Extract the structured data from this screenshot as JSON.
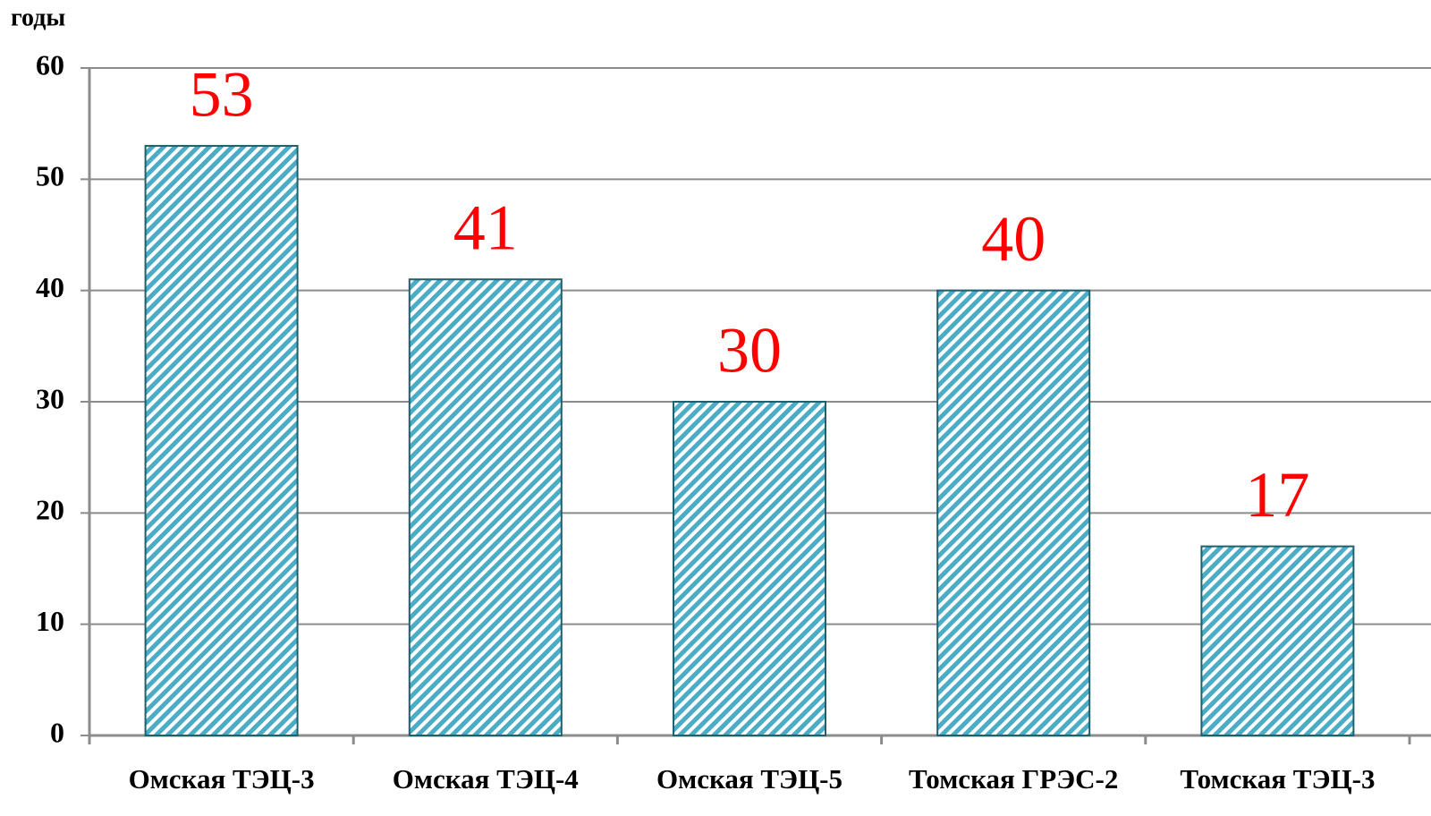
{
  "chart_data": {
    "type": "bar",
    "y_label": "годы",
    "categories": [
      "Омская ТЭЦ-3",
      "Омская ТЭЦ-4",
      "Омская ТЭЦ-5",
      "Томская ГРЭС-2",
      "Томская ТЭЦ-3"
    ],
    "values": [
      53,
      41,
      30,
      40,
      17
    ],
    "color": "#4bacc6",
    "ylim": [
      0,
      60
    ],
    "yticks": [
      0,
      10,
      20,
      30,
      40,
      50,
      60
    ],
    "grid": true
  }
}
